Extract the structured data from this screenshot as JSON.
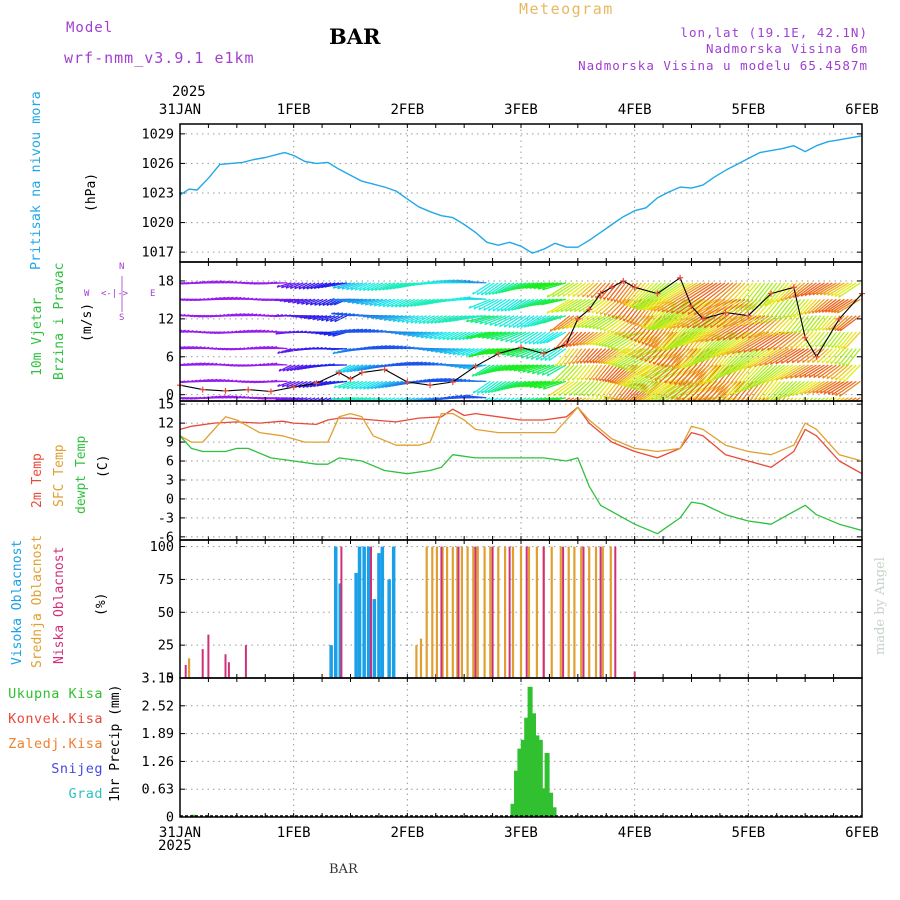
{
  "header": {
    "model_label": "Model",
    "model_value": "wrf-nmm_v3.9.1 e1km",
    "station": "BAR",
    "chart_kind": "Meteogram",
    "coords": "lon,lat (19.1E, 42.1N)",
    "elevation": "Nadmorska Visina 6m",
    "model_elevation": "Nadmorska Visina u modelu 65.4587m",
    "footer_station": "BAR",
    "credit": "made by Angel"
  },
  "colors": {
    "pressure": "#22a8e8",
    "temp2m": "#e84a3a",
    "sfc": "#e0a030",
    "dewpt": "#30c040",
    "high_cloud": "#1aa0e8",
    "mid_cloud": "#e0a030",
    "low_cloud": "#d0307a",
    "precip_total": "#30c030",
    "precip_conv": "#e84a3a",
    "precip_frz": "#f08030",
    "snow": "#4848e0",
    "graupel": "#30c0c0",
    "purple_text": "#a040d0"
  },
  "chart_data": [
    {
      "type": "line",
      "panel": "pressure",
      "ylabel": [
        "Pritisak na nivou mora",
        "(hPa)"
      ],
      "x_ticks": [
        "31JAN",
        "1FEB",
        "2FEB",
        "3FEB",
        "4FEB",
        "5FEB",
        "6FEB"
      ],
      "x_year_top": "2025",
      "x_year_bottom": "2025",
      "ylim": [
        1016,
        1030
      ],
      "yticks": [
        1017,
        1020,
        1023,
        1026,
        1029
      ],
      "grid": true,
      "series": [
        {
          "x_days": [
            0,
            0.08,
            0.15,
            0.25,
            0.35,
            0.45,
            0.55,
            0.65,
            0.75,
            0.85,
            0.92,
            1.0,
            1.1,
            1.2,
            1.3,
            1.4,
            1.5,
            1.6,
            1.7,
            1.8,
            1.9,
            2.0,
            2.1,
            2.2,
            2.3,
            2.4,
            2.5,
            2.6,
            2.7,
            2.8,
            2.9,
            3.0,
            3.1,
            3.2,
            3.3,
            3.4,
            3.5,
            3.6,
            3.7,
            3.8,
            3.9,
            4.0,
            4.1,
            4.2,
            4.3,
            4.4,
            4.5,
            4.6,
            4.7,
            4.8,
            4.9,
            5.0,
            5.1,
            5.2,
            5.3,
            5.4,
            5.5,
            5.6,
            5.7,
            5.8,
            5.9,
            6.0
          ],
          "values": [
            1022.8,
            1023.4,
            1023.3,
            1024.5,
            1025.9,
            1026.0,
            1026.1,
            1026.4,
            1026.6,
            1026.9,
            1027.1,
            1026.8,
            1026.2,
            1026.0,
            1026.1,
            1025.4,
            1024.8,
            1024.2,
            1023.9,
            1023.6,
            1023.2,
            1022.4,
            1021.6,
            1021.1,
            1020.7,
            1020.5,
            1019.8,
            1019.0,
            1018.0,
            1017.7,
            1018.0,
            1017.6,
            1016.9,
            1017.3,
            1017.9,
            1017.5,
            1017.5,
            1018.2,
            1019.0,
            1019.8,
            1020.6,
            1021.2,
            1021.5,
            1022.5,
            1023.1,
            1023.6,
            1023.5,
            1023.8,
            1024.6,
            1025.3,
            1025.9,
            1026.5,
            1027.1,
            1027.3,
            1027.5,
            1027.8,
            1027.2,
            1027.8,
            1028.2,
            1028.4,
            1028.6,
            1028.8
          ]
        }
      ]
    },
    {
      "type": "wind",
      "panel": "wind",
      "ylabel": [
        "10m Vjetar",
        "Brzina i Pravac",
        "(m/s)"
      ],
      "compass": {
        "n": "N",
        "s": "S",
        "w": "W",
        "e": "E",
        "arrows": "<-|->"
      },
      "ylim": [
        -1,
        21
      ],
      "yticks": [
        0,
        6,
        12,
        18
      ],
      "grid": true,
      "series": [
        {
          "name": "wind speed",
          "x_days": [
            0,
            0.2,
            0.4,
            0.6,
            0.8,
            1.0,
            1.2,
            1.4,
            1.5,
            1.6,
            1.8,
            2.0,
            2.2,
            2.4,
            2.6,
            2.8,
            3.0,
            3.2,
            3.4,
            3.5,
            3.6,
            3.7,
            3.8,
            3.9,
            4.0,
            4.2,
            4.4,
            4.5,
            4.6,
            4.8,
            5.0,
            5.2,
            5.4,
            5.5,
            5.6,
            5.8,
            6.0
          ],
          "values": [
            1.5,
            0.8,
            0.6,
            0.8,
            0.5,
            1.2,
            1.8,
            3.5,
            2.5,
            3.5,
            4.0,
            2.0,
            1.5,
            2.0,
            4.5,
            6.5,
            7.5,
            6.5,
            8.0,
            12.0,
            13.5,
            16.0,
            17.0,
            18.0,
            17.0,
            16.0,
            18.5,
            14.0,
            12.0,
            13.0,
            12.5,
            16.0,
            17.0,
            9.0,
            6.0,
            12.0,
            16.0
          ]
        }
      ]
    },
    {
      "type": "line",
      "panel": "temperature",
      "ylabel": [
        "2m Temp",
        "SFC Temp",
        "dewpt Temp",
        "(C)"
      ],
      "ylim": [
        -6.5,
        15.5
      ],
      "yticks": [
        -6,
        -3,
        0,
        3,
        6,
        9,
        12,
        15
      ],
      "grid": true,
      "series": [
        {
          "name": "2m Temp",
          "x_days": [
            0,
            0.1,
            0.3,
            0.5,
            0.7,
            0.9,
            1.0,
            1.2,
            1.3,
            1.4,
            1.5,
            1.7,
            1.9,
            2.1,
            2.3,
            2.4,
            2.5,
            2.6,
            2.8,
            3.0,
            3.2,
            3.4,
            3.5,
            3.6,
            3.8,
            4.0,
            4.2,
            4.4,
            4.5,
            4.6,
            4.8,
            5.0,
            5.2,
            5.4,
            5.5,
            5.6,
            5.8,
            6.0
          ],
          "values": [
            11.0,
            11.5,
            12.0,
            12.2,
            12.0,
            12.3,
            12.0,
            11.8,
            12.5,
            12.8,
            12.8,
            12.5,
            12.2,
            12.8,
            13.0,
            14.2,
            13.2,
            13.5,
            13.0,
            12.5,
            12.5,
            13.0,
            14.5,
            12.0,
            9.0,
            7.5,
            6.5,
            8.0,
            10.5,
            10.0,
            7.0,
            6.0,
            5.0,
            7.5,
            11.0,
            10.0,
            6.0,
            4.0
          ]
        },
        {
          "name": "SFC Temp",
          "x_days": [
            0,
            0.1,
            0.2,
            0.3,
            0.4,
            0.5,
            0.7,
            0.9,
            1.1,
            1.3,
            1.4,
            1.5,
            1.6,
            1.7,
            1.9,
            2.1,
            2.2,
            2.3,
            2.4,
            2.5,
            2.6,
            2.8,
            3.0,
            3.2,
            3.3,
            3.4,
            3.5,
            3.6,
            3.8,
            4.0,
            4.2,
            4.4,
            4.5,
            4.6,
            4.8,
            5.0,
            5.2,
            5.4,
            5.5,
            5.6,
            5.8,
            6.0
          ],
          "values": [
            10.0,
            9.0,
            9.0,
            11.0,
            13.0,
            12.5,
            10.5,
            10.0,
            9.0,
            9.0,
            13.0,
            13.5,
            13.0,
            10.0,
            8.5,
            8.5,
            9.0,
            13.5,
            13.5,
            12.5,
            11.0,
            10.5,
            10.5,
            10.5,
            10.5,
            12.5,
            14.5,
            12.5,
            9.5,
            8.0,
            7.5,
            8.0,
            11.5,
            11.0,
            8.5,
            7.5,
            7.0,
            8.5,
            12.0,
            11.0,
            7.0,
            6.0
          ]
        },
        {
          "name": "dewpt Temp",
          "x_days": [
            0,
            0.1,
            0.2,
            0.4,
            0.5,
            0.6,
            0.8,
            1.0,
            1.2,
            1.3,
            1.4,
            1.6,
            1.8,
            2.0,
            2.2,
            2.3,
            2.4,
            2.6,
            2.8,
            3.0,
            3.2,
            3.4,
            3.5,
            3.6,
            3.7,
            3.8,
            4.0,
            4.2,
            4.4,
            4.5,
            4.6,
            4.8,
            5.0,
            5.2,
            5.4,
            5.5,
            5.6,
            5.8,
            6.0
          ],
          "values": [
            10.0,
            8.0,
            7.5,
            7.5,
            8.0,
            8.0,
            6.5,
            6.0,
            5.5,
            5.5,
            6.5,
            6.0,
            4.5,
            4.0,
            4.5,
            5.0,
            7.0,
            6.5,
            6.5,
            6.5,
            6.5,
            6.0,
            6.5,
            2.0,
            -1.0,
            -2.0,
            -4.0,
            -5.5,
            -3.0,
            -0.5,
            -0.8,
            -2.5,
            -3.5,
            -4.0,
            -2.0,
            -1.0,
            -2.5,
            -4.0,
            -5.0
          ]
        }
      ]
    },
    {
      "type": "bar",
      "panel": "cloud",
      "ylabel": [
        "Visoka Oblacnost",
        "Srednja Oblacnost",
        "Niska Oblacnost",
        "(%)"
      ],
      "ylim": [
        0,
        105
      ],
      "yticks": [
        0,
        25,
        50,
        75,
        100
      ],
      "grid": true,
      "series": [
        {
          "name": "Visoka Oblacnost",
          "x_days": [
            1.33,
            1.37,
            1.41,
            1.55,
            1.58,
            1.62,
            1.66,
            1.71,
            1.75,
            1.78,
            1.84,
            1.88
          ],
          "values": [
            25,
            100,
            72,
            80,
            100,
            100,
            100,
            60,
            95,
            100,
            75,
            100
          ]
        },
        {
          "name": "Srednja Oblacnost",
          "x_days": [
            0.08,
            2.08,
            2.12,
            2.17,
            2.22,
            2.26,
            2.31,
            2.35,
            2.4,
            2.44,
            2.48,
            2.53,
            2.58,
            2.62,
            2.68,
            2.73,
            2.8,
            2.86,
            2.93,
            3.0,
            3.07,
            3.14,
            3.2,
            3.27,
            3.35,
            3.42,
            3.47,
            3.53,
            3.6,
            3.66,
            3.72,
            3.79
          ],
          "values": [
            15,
            25,
            30,
            100,
            100,
            100,
            100,
            100,
            100,
            100,
            100,
            100,
            100,
            100,
            100,
            100,
            100,
            100,
            100,
            100,
            100,
            100,
            100,
            100,
            100,
            100,
            100,
            100,
            100,
            100,
            100,
            100
          ]
        },
        {
          "name": "Niska Oblacnost",
          "x_days": [
            0.05,
            0.2,
            0.25,
            0.4,
            0.43,
            0.58,
            1.42,
            1.68,
            2.3,
            2.45,
            2.6,
            2.75,
            2.9,
            3.05,
            3.2,
            3.37,
            3.55,
            3.7,
            3.83,
            4.0
          ],
          "values": [
            10,
            22,
            33,
            18,
            12,
            25,
            100,
            100,
            100,
            100,
            100,
            100,
            100,
            100,
            100,
            100,
            100,
            100,
            100,
            5
          ]
        }
      ]
    },
    {
      "type": "bar",
      "panel": "precip",
      "ylabel": [
        "1hr Precip (mm)"
      ],
      "legend": [
        "Ukupna Kisa",
        "Konvek.Kisa",
        "Zaledj.Kisa",
        "Snijeg",
        "Grad"
      ],
      "ylim": [
        0,
        3.15
      ],
      "yticks": [
        0,
        0.63,
        1.26,
        1.89,
        2.52,
        3.15
      ],
      "ytick_labels": [
        "0",
        "0.63",
        "1.26",
        "1.89",
        "2.52",
        "3.15"
      ],
      "grid": true,
      "series": [
        {
          "name": "Ukupna Kisa",
          "x_days": [
            0.12,
            2.93,
            2.96,
            2.99,
            3.02,
            3.05,
            3.08,
            3.11,
            3.14,
            3.17,
            3.2,
            3.23,
            3.26,
            3.29
          ],
          "values": [
            0.05,
            0.3,
            1.05,
            1.55,
            1.75,
            2.25,
            2.95,
            2.35,
            1.85,
            1.75,
            0.65,
            1.45,
            0.55,
            0.22
          ]
        }
      ]
    }
  ]
}
